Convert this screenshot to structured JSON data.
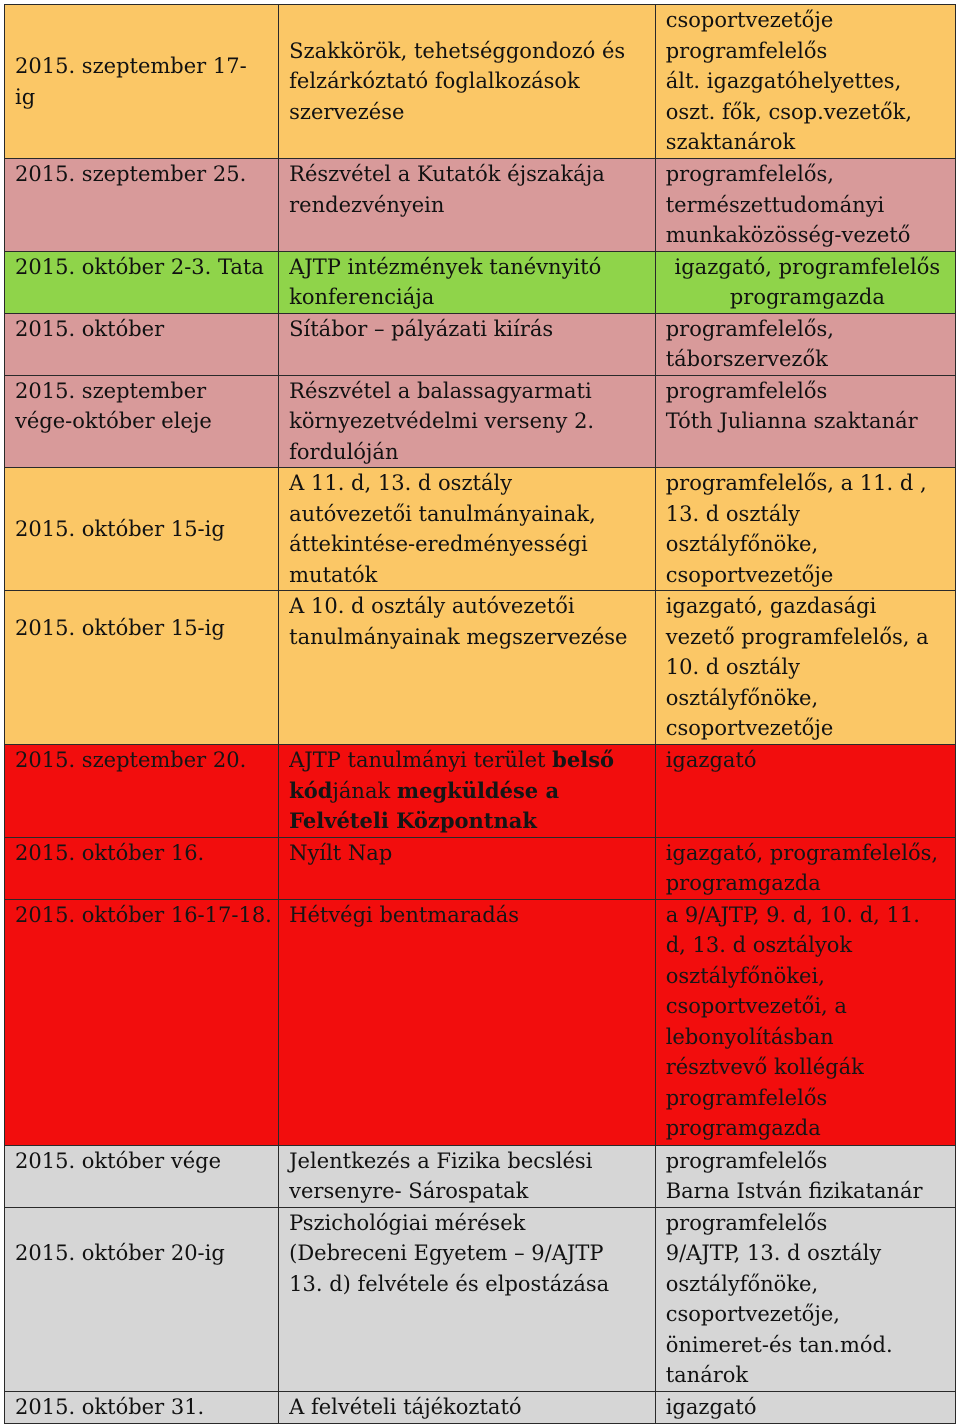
{
  "rows": [
    {
      "date": "2015. szeptember 17-\nig",
      "activity": "Szakkörök, tehetséggondozó és\nfelzárkóztató foglalkozások\nszervezése",
      "responsible": "csoportvezetője\nprogramfelelős\nált. igazgatóhelyettes,\noszt. fők, csop.vezetők,\nszaktanárok"
    },
    {
      "date": "2015. szeptember 25.",
      "activity": "Részvétel a Kutatók éjszakája\nrendezvényein",
      "responsible": "programfelelős,\ntermészettudományi\nmunkaközösség-vezető"
    },
    {
      "date": "2015. október 2-3. Tata",
      "activity": "AJTP intézmények tanévnyitó\nkonferenciája",
      "responsible": "igazgató, programfelelős\nprogramgazda"
    },
    {
      "date": "2015. október",
      "activity": "Sítábor – pályázati kiírás",
      "responsible": "programfelelős,\ntáborszervezők"
    },
    {
      "date": "2015. szeptember\nvége-október eleje",
      "activity": "Részvétel a balassagyarmati\nkörnyezetvédelmi verseny 2.\nfordulóján",
      "responsible": "programfelelős\nTóth Julianna szaktanár"
    },
    {
      "date": "2015. október 15-ig",
      "activity": "A 11. d, 13. d osztály\nautóvezetői tanulmányainak,\náttekintése-eredményességi\nmutatók",
      "responsible": "programfelelős, a 11. d ,\n13. d osztály\nosztályfőnöke,\ncsoportvezetője"
    },
    {
      "date": "2015. október 15-ig",
      "activity": "A 10. d osztály autóvezetői\ntanulmányainak megszervezése",
      "responsible": "igazgató, gazdasági\nvezető programfelelős, a\n10. d osztály\nosztályfőnöke,\ncsoportvezetője"
    },
    {
      "date": "2015. szeptember 20.",
      "activity_parts": [
        "AJTP tanulmányi terület ",
        "belső",
        "\n",
        "kód",
        "jának ",
        "megküldése a",
        "\n",
        "Felvételi Központnak"
      ],
      "responsible": "igazgató"
    },
    {
      "date": "2015. október 16.",
      "activity": "Nyílt Nap",
      "responsible": "igazgató, programfelelős,\nprogramgazda"
    },
    {
      "date": "2015. október 16-17-18.",
      "activity": "Hétvégi bentmaradás",
      "responsible": " a 9/AJTP, 9. d, 10. d, 11.\nd, 13. d osztályok\nosztályfőnökei,\ncsoportvezetői, a\nlebonyolításban\nrésztvevő kollégák\nprogramfelelős\nprogramgazda"
    },
    {
      "date": "2015. október vége",
      "activity": "Jelentkezés a Fizika becslési\nversenyre- Sárospatak",
      "responsible": "programfelelős\n Barna István fizikatanár"
    },
    {
      "date": "2015. október 20-ig",
      "activity": "Pszichológiai mérések\n(Debreceni Egyetem – 9/AJTP\n13. d) felvétele és elpostázása",
      "responsible": "programfelelős\n9/AJTP, 13. d osztály\nosztályfőnöke,\ncsoportvezetője,\nönimeret-és tan.mód.\ntanárok"
    },
    {
      "date": "2015. október 31.",
      "activity": "A felvételi tájékoztató",
      "responsible": "igazgató"
    }
  ]
}
